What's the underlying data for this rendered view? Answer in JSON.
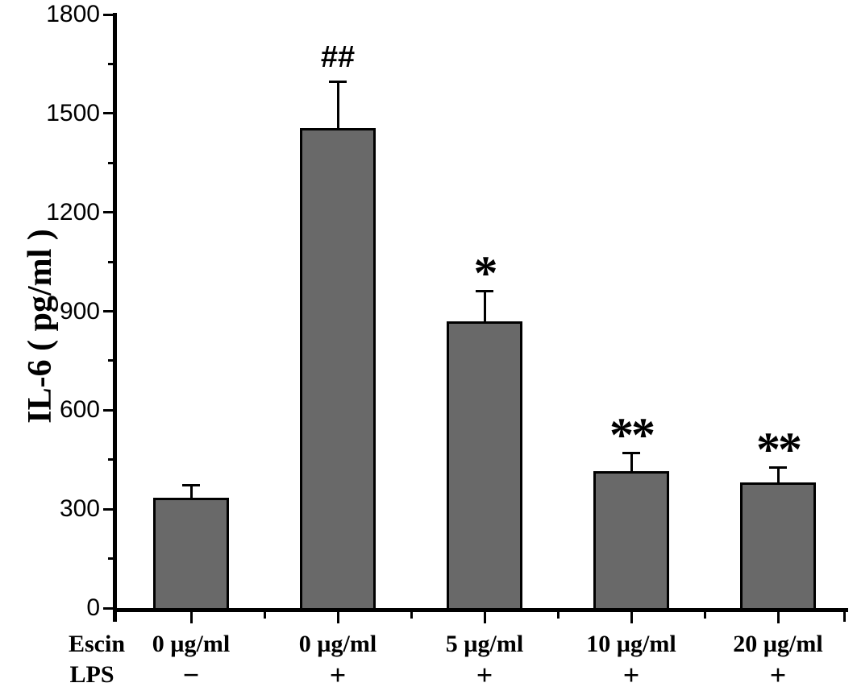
{
  "chart_data": {
    "type": "bar",
    "title": "",
    "ylabel": "IL-6 ( pg/ml )",
    "xlabel": "",
    "ylim": [
      0,
      1800
    ],
    "yticks": [
      0,
      300,
      600,
      900,
      1200,
      1500,
      1800
    ],
    "yminor_interval": 150,
    "grid": false,
    "legend": "none",
    "bar_color": "#696969",
    "bar_edge_color": "#000000",
    "background_color": "#ffffff",
    "x_row_headers": [
      "Escin",
      "LPS"
    ],
    "categories": [
      "0 µg/ml",
      "0 µg/ml",
      "5 µg/ml",
      "10 µg/ml",
      "20 µg/ml"
    ],
    "lps_row": [
      "−",
      "+",
      "+",
      "+",
      "+"
    ],
    "series": [
      {
        "name": "IL-6",
        "values": [
          335,
          1455,
          870,
          415,
          380
        ],
        "errors": [
          38,
          140,
          90,
          55,
          45
        ]
      }
    ],
    "annotations": [
      "",
      "##",
      "*",
      "**",
      "**"
    ]
  }
}
